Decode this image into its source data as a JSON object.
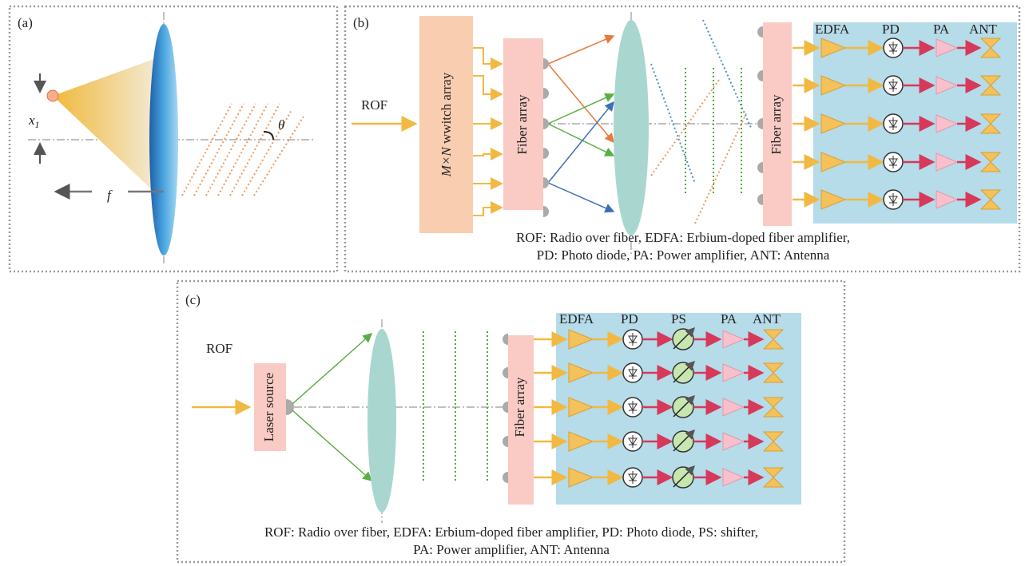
{
  "panel_a": {
    "label": "(a)",
    "offset_symbol": "x",
    "offset_subscript": "1",
    "angle_symbol": "θ",
    "focal_symbol": "f"
  },
  "panel_b": {
    "label": "(b)",
    "input": "ROF",
    "switch_symbol": "M×N",
    "switch_text": " wwitch array",
    "fiber_array_in": "Fiber array",
    "fiber_array_out": "Fiber array",
    "headers": [
      "EDFA",
      "PD",
      "PA",
      "ANT"
    ],
    "caption": [
      "ROF: Radio over fiber, EDFA: Erbium-doped fiber amplifier,",
      "PD: Photo diode, PA: Power amplifier, ANT: Antenna"
    ]
  },
  "panel_c": {
    "label": "(c)",
    "input": "ROF",
    "laser": "Laser source",
    "fiber_array": "Fiber array",
    "headers": [
      "EDFA",
      "PD",
      "PS",
      "PA",
      "ANT"
    ],
    "caption": [
      "ROF: Radio over fiber, EDFA: Erbium-doped fiber amplifier, PD: Photo diode, PS: shifter,",
      "PA: Power amplifier, ANT: Antenna"
    ]
  }
}
